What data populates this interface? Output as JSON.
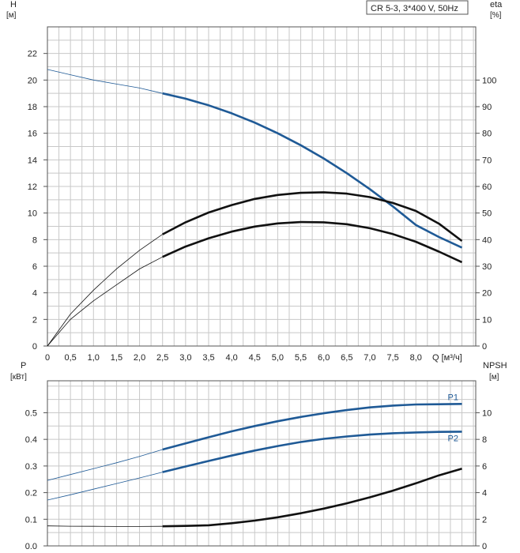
{
  "header_label": "CR 5-3, 3*400 V, 50Hz",
  "colors": {
    "blue": "#1f5a96",
    "black": "#111111",
    "grid": "#c8c8c8",
    "frame": "#555555"
  },
  "chart_data": [
    {
      "type": "line",
      "left_axis": {
        "label": "H",
        "unit": "[м]",
        "range": [
          0,
          24
        ],
        "ticks": [
          "0",
          "2",
          "4",
          "6",
          "8",
          "10",
          "12",
          "14",
          "16",
          "18",
          "20",
          "22"
        ]
      },
      "right_axis": {
        "label": "eta",
        "unit": "[%]",
        "range": [
          0,
          120
        ],
        "ticks": [
          "0",
          "10",
          "20",
          "30",
          "40",
          "50",
          "60",
          "70",
          "80",
          "90",
          "100"
        ]
      },
      "x_axis": {
        "unit_label": "Q [м³/ч]",
        "range": [
          0,
          9.3
        ],
        "ticks": [
          "0",
          "0,5",
          "1,0",
          "1,5",
          "2,0",
          "2,5",
          "3,0",
          "3,5",
          "4,0",
          "4,5",
          "5,0",
          "5,5",
          "6,0",
          "6,5",
          "7,0",
          "7,5",
          "8,0"
        ]
      },
      "grid": true,
      "series": [
        {
          "axis": "left",
          "color": "blue",
          "x": [
            0,
            0.5,
            1,
            1.5,
            2,
            2.5,
            3,
            3.5,
            4,
            4.5,
            5,
            5.5,
            6,
            6.5,
            7,
            7.5,
            8,
            8.5,
            9
          ],
          "y": [
            20.8,
            20.4,
            20.0,
            19.7,
            19.4,
            19.0,
            18.6,
            18.1,
            17.5,
            16.8,
            16.0,
            15.1,
            14.1,
            13.0,
            11.8,
            10.5,
            9.1,
            8.2,
            7.4
          ],
          "bold_from": 2.5
        },
        {
          "axis": "right",
          "color": "black",
          "x": [
            0,
            0.5,
            1,
            1.5,
            2,
            2.5,
            3,
            3.5,
            4,
            4.5,
            5,
            5.5,
            6,
            6.5,
            7,
            7.5,
            8,
            8.5,
            9
          ],
          "y": [
            0,
            12,
            21,
            29,
            36,
            42,
            46.5,
            50.2,
            53,
            55.3,
            56.8,
            57.6,
            57.8,
            57.3,
            56,
            53.8,
            50.8,
            46,
            39.5
          ],
          "bold_from": 2.5
        },
        {
          "axis": "right",
          "color": "black",
          "x": [
            0,
            0.5,
            1,
            1.5,
            2,
            2.5,
            3,
            3.5,
            4,
            4.5,
            5,
            5.5,
            6,
            6.5,
            7,
            7.5,
            8,
            8.5,
            9
          ],
          "y": [
            0,
            10,
            17,
            23,
            29,
            33.5,
            37.4,
            40.5,
            43,
            44.9,
            46.1,
            46.6,
            46.5,
            45.8,
            44.3,
            42.1,
            39.2,
            35.5,
            31.5
          ],
          "bold_from": 2.5
        }
      ]
    },
    {
      "type": "line",
      "left_axis": {
        "label": "P",
        "unit": "[кВт]",
        "range": [
          0,
          0.62
        ],
        "ticks": [
          "0.0",
          "0.1",
          "0.2",
          "0.3",
          "0.4",
          "0.5"
        ]
      },
      "right_axis": {
        "label": "NPSH",
        "unit": "[м]",
        "range": [
          0,
          12.4
        ],
        "ticks": [
          "0",
          "2",
          "4",
          "6",
          "8",
          "10"
        ]
      },
      "x_axis": {
        "range": [
          0,
          9.3
        ]
      },
      "grid": true,
      "series": [
        {
          "name": "P1",
          "axis": "left",
          "color": "blue",
          "x": [
            0,
            0.5,
            1,
            1.5,
            2,
            2.5,
            3,
            3.5,
            4,
            4.5,
            5,
            5.5,
            6,
            6.5,
            7,
            7.5,
            8,
            8.5,
            9
          ],
          "y": [
            0.246,
            0.268,
            0.29,
            0.312,
            0.336,
            0.362,
            0.385,
            0.408,
            0.43,
            0.45,
            0.468,
            0.484,
            0.498,
            0.51,
            0.52,
            0.527,
            0.531,
            0.532,
            0.533
          ],
          "bold_from": 2.5
        },
        {
          "name": "P2",
          "axis": "left",
          "color": "blue",
          "x": [
            0,
            0.5,
            1,
            1.5,
            2,
            2.5,
            3,
            3.5,
            4,
            4.5,
            5,
            5.5,
            6,
            6.5,
            7,
            7.5,
            8,
            8.5,
            9
          ],
          "y": [
            0.172,
            0.192,
            0.213,
            0.234,
            0.255,
            0.277,
            0.298,
            0.319,
            0.339,
            0.358,
            0.375,
            0.39,
            0.402,
            0.411,
            0.418,
            0.423,
            0.426,
            0.428,
            0.429
          ],
          "bold_from": 2.5
        },
        {
          "axis": "right",
          "color": "black",
          "x": [
            0,
            0.5,
            1,
            1.5,
            2,
            2.5,
            3,
            3.5,
            4,
            4.5,
            5,
            5.5,
            6,
            6.5,
            7,
            7.5,
            8,
            8.5,
            9
          ],
          "y": [
            1.5,
            1.48,
            1.47,
            1.46,
            1.46,
            1.47,
            1.5,
            1.55,
            1.7,
            1.9,
            2.15,
            2.45,
            2.8,
            3.2,
            3.65,
            4.15,
            4.7,
            5.3,
            5.8
          ],
          "bold_from": 2.5
        }
      ]
    }
  ]
}
